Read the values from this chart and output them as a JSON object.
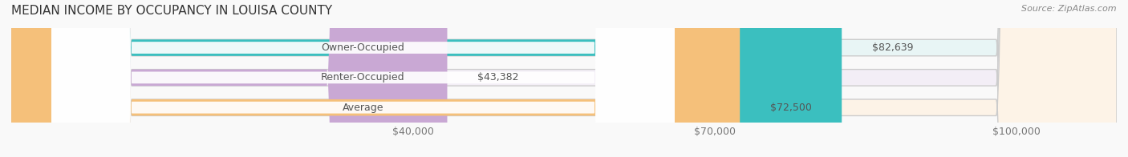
{
  "title": "MEDIAN INCOME BY OCCUPANCY IN LOUISA COUNTY",
  "source": "Source: ZipAtlas.com",
  "categories": [
    "Owner-Occupied",
    "Renter-Occupied",
    "Average"
  ],
  "values": [
    82639,
    43382,
    72500
  ],
  "labels": [
    "$82,639",
    "$43,382",
    "$72,500"
  ],
  "bar_colors": [
    "#3bbfbf",
    "#c9a8d4",
    "#f5c07a"
  ],
  "bar_bg_colors": [
    "#e8f5f5",
    "#f3eef6",
    "#fdf3e7"
  ],
  "xmax": 110000,
  "xticks": [
    0,
    40000,
    70000,
    100000
  ],
  "xtick_labels": [
    "$40,000",
    "$70,000",
    "$100,000"
  ],
  "title_fontsize": 11,
  "source_fontsize": 8,
  "label_fontsize": 9,
  "bar_height": 0.55,
  "background_color": "#f9f9f9",
  "grid_color": "#dddddd"
}
